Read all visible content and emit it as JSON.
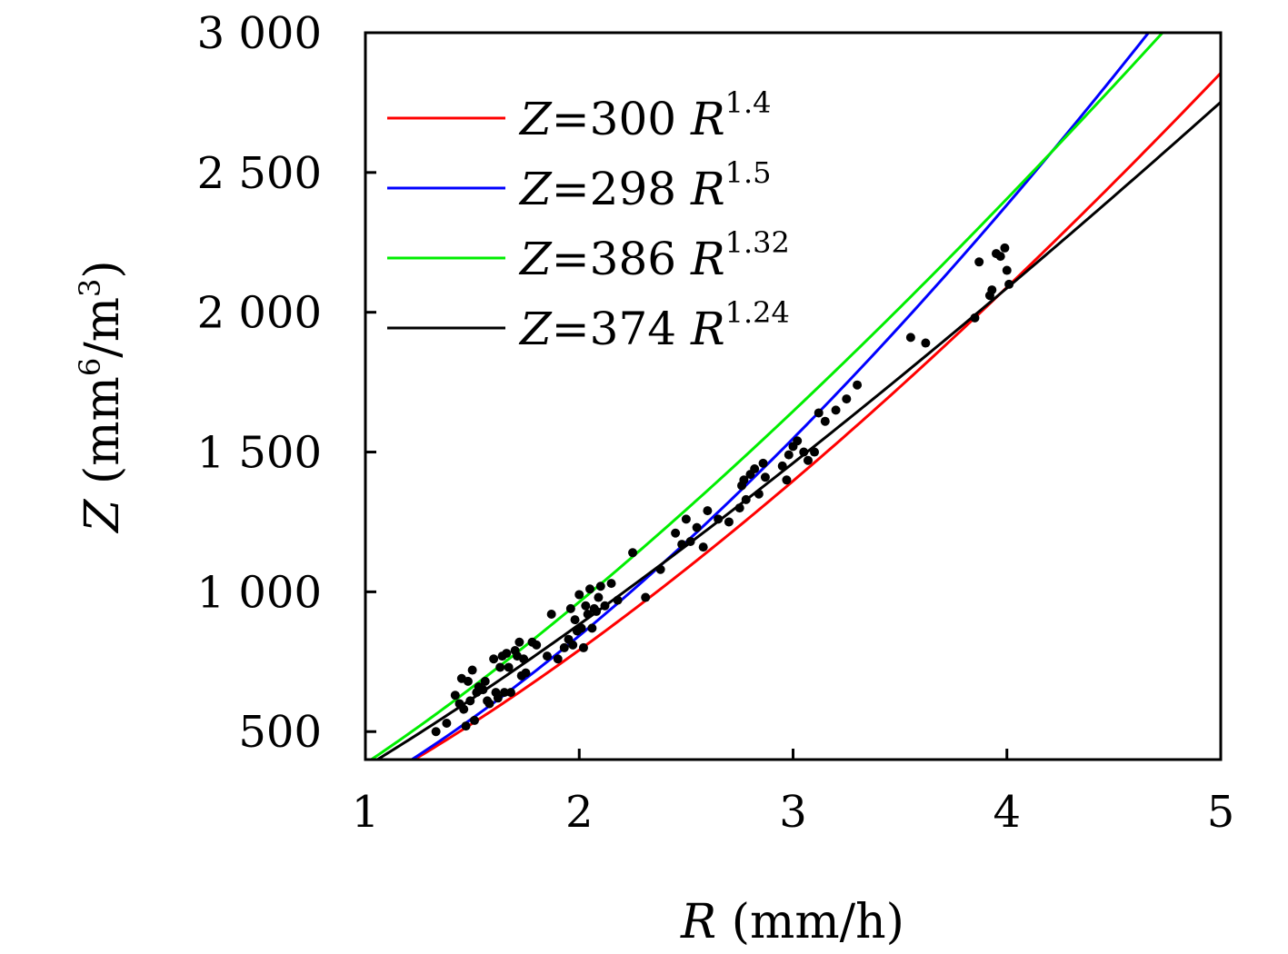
{
  "chart_data": {
    "type": "scatter",
    "xlabel": {
      "var": "R",
      "unit": " (mm/h)"
    },
    "ylabel": {
      "var": "Z",
      "unit_open": " (mm",
      "unit_exp": "6",
      "unit_mid": "/m",
      "unit_exp2": "3",
      "unit_close": ")"
    },
    "xlim": [
      1,
      5
    ],
    "ylim": [
      400,
      3000
    ],
    "x_ticks": [
      1,
      2,
      3,
      4,
      5
    ],
    "x_tick_labels": [
      "1",
      "2",
      "3",
      "4",
      "5"
    ],
    "y_ticks": [
      500,
      1000,
      1500,
      2000,
      2500,
      3000
    ],
    "y_tick_labels": [
      "500",
      "1 000",
      "1 500",
      "2 000",
      "2 500",
      "3 000"
    ],
    "grid": false,
    "legend_position": "top-left",
    "series": [
      {
        "name": "Z=300 R^1.4",
        "label_main": "=300 ",
        "label_exp": "1.4",
        "a": 300,
        "b": 1.4,
        "color": "#ff0000"
      },
      {
        "name": "Z=298 R^1.5",
        "label_main": "=298 ",
        "label_exp": "1.5",
        "a": 298,
        "b": 1.5,
        "color": "#0000ff"
      },
      {
        "name": "Z=386 R^1.32",
        "label_main": "=386 ",
        "label_exp": "1.32",
        "a": 386,
        "b": 1.32,
        "color": "#00ee00"
      },
      {
        "name": "Z=374 R^1.24",
        "label_main": "=374 ",
        "label_exp": "1.24",
        "a": 374,
        "b": 1.24,
        "color": "#000000"
      }
    ],
    "points": [
      [
        1.33,
        500
      ],
      [
        1.38,
        530
      ],
      [
        1.42,
        630
      ],
      [
        1.44,
        600
      ],
      [
        1.45,
        690
      ],
      [
        1.46,
        580
      ],
      [
        1.47,
        520
      ],
      [
        1.48,
        680
      ],
      [
        1.49,
        610
      ],
      [
        1.5,
        720
      ],
      [
        1.51,
        540
      ],
      [
        1.52,
        640
      ],
      [
        1.53,
        660
      ],
      [
        1.55,
        650
      ],
      [
        1.56,
        680
      ],
      [
        1.57,
        610
      ],
      [
        1.58,
        600
      ],
      [
        1.6,
        760
      ],
      [
        1.61,
        640
      ],
      [
        1.62,
        620
      ],
      [
        1.63,
        730
      ],
      [
        1.64,
        770
      ],
      [
        1.65,
        640
      ],
      [
        1.66,
        780
      ],
      [
        1.67,
        730
      ],
      [
        1.68,
        640
      ],
      [
        1.7,
        790
      ],
      [
        1.71,
        770
      ],
      [
        1.72,
        820
      ],
      [
        1.73,
        700
      ],
      [
        1.74,
        760
      ],
      [
        1.75,
        710
      ],
      [
        1.78,
        820
      ],
      [
        1.8,
        810
      ],
      [
        1.85,
        770
      ],
      [
        1.87,
        920
      ],
      [
        1.9,
        760
      ],
      [
        1.93,
        800
      ],
      [
        1.95,
        830
      ],
      [
        1.96,
        940
      ],
      [
        1.97,
        810
      ],
      [
        1.98,
        900
      ],
      [
        1.99,
        860
      ],
      [
        2.0,
        990
      ],
      [
        2.01,
        870
      ],
      [
        2.02,
        800
      ],
      [
        2.03,
        950
      ],
      [
        2.04,
        920
      ],
      [
        2.05,
        1010
      ],
      [
        2.06,
        870
      ],
      [
        2.07,
        940
      ],
      [
        2.08,
        930
      ],
      [
        2.09,
        980
      ],
      [
        2.1,
        1020
      ],
      [
        2.12,
        950
      ],
      [
        2.15,
        1030
      ],
      [
        2.18,
        970
      ],
      [
        2.25,
        1140
      ],
      [
        2.31,
        980
      ],
      [
        2.38,
        1080
      ],
      [
        2.45,
        1210
      ],
      [
        2.48,
        1170
      ],
      [
        2.5,
        1260
      ],
      [
        2.52,
        1180
      ],
      [
        2.55,
        1230
      ],
      [
        2.58,
        1160
      ],
      [
        2.6,
        1290
      ],
      [
        2.65,
        1260
      ],
      [
        2.7,
        1250
      ],
      [
        2.75,
        1300
      ],
      [
        2.76,
        1380
      ],
      [
        2.77,
        1400
      ],
      [
        2.78,
        1330
      ],
      [
        2.8,
        1420
      ],
      [
        2.82,
        1440
      ],
      [
        2.84,
        1350
      ],
      [
        2.86,
        1460
      ],
      [
        2.87,
        1410
      ],
      [
        2.95,
        1450
      ],
      [
        2.97,
        1400
      ],
      [
        2.98,
        1490
      ],
      [
        3.0,
        1520
      ],
      [
        3.02,
        1540
      ],
      [
        3.05,
        1500
      ],
      [
        3.07,
        1470
      ],
      [
        3.1,
        1500
      ],
      [
        3.12,
        1640
      ],
      [
        3.15,
        1610
      ],
      [
        3.2,
        1650
      ],
      [
        3.25,
        1690
      ],
      [
        3.3,
        1740
      ],
      [
        3.55,
        1910
      ],
      [
        3.62,
        1890
      ],
      [
        3.85,
        1980
      ],
      [
        3.87,
        2180
      ],
      [
        3.92,
        2060
      ],
      [
        3.93,
        2080
      ],
      [
        3.95,
        2210
      ],
      [
        3.97,
        2200
      ],
      [
        3.99,
        2230
      ],
      [
        4.0,
        2150
      ],
      [
        4.01,
        2100
      ]
    ]
  }
}
